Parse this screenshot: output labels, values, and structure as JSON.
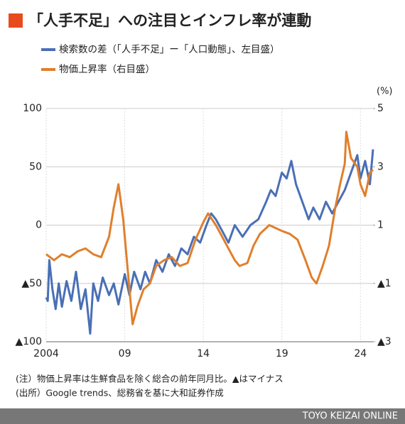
{
  "chart_data": {
    "type": "line",
    "title": "「人手不足」への注目とインフレ率が連動",
    "y2_unit": "(%)",
    "notes": [
      "(注）物価上昇率は生鮮食品を除く総合の前年同月比。▲はマイナス",
      "(出所）Google trends、総務省を基に大和証券作成"
    ],
    "source": "TOYO KEIZAI ONLINE",
    "xlim": [
      2004,
      2024.8
    ],
    "xticks": [
      {
        "value": 2004,
        "label": "2004"
      },
      {
        "value": 2009,
        "label": "09"
      },
      {
        "value": 2014,
        "label": "14"
      },
      {
        "value": 2019,
        "label": "19"
      },
      {
        "value": 2024,
        "label": "24"
      }
    ],
    "ylim": [
      -100,
      100
    ],
    "yticks": [
      100,
      50,
      0,
      {
        "value": -50,
        "label": "▲50"
      },
      {
        "value": -100,
        "label": "▲100"
      }
    ],
    "y2lim": [
      -3,
      5
    ],
    "y2ticks": [
      5,
      3,
      1,
      {
        "value": -1,
        "label": "▲1"
      },
      {
        "value": -3,
        "label": "▲3"
      }
    ],
    "grid": true,
    "series": [
      {
        "name": "検索数の差（「人手不足」ー「人口動態」、左目盛）",
        "color": "#4a6fb5",
        "axis": "y",
        "x": [
          2004.0,
          2004.1,
          2004.2,
          2004.4,
          2004.6,
          2004.8,
          2005.0,
          2005.3,
          2005.6,
          2005.9,
          2006.2,
          2006.5,
          2006.8,
          2007.0,
          2007.3,
          2007.6,
          2008.0,
          2008.3,
          2008.6,
          2009.0,
          2009.3,
          2009.6,
          2010.0,
          2010.3,
          2010.6,
          2011.0,
          2011.4,
          2011.8,
          2012.2,
          2012.6,
          2013.0,
          2013.4,
          2013.8,
          2014.2,
          2014.5,
          2014.8,
          2015.2,
          2015.6,
          2016.0,
          2016.5,
          2017.0,
          2017.5,
          2018.0,
          2018.3,
          2018.6,
          2019.0,
          2019.3,
          2019.6,
          2019.9,
          2020.3,
          2020.7,
          2021.0,
          2021.4,
          2021.8,
          2022.2,
          2022.6,
          2023.0,
          2023.4,
          2023.8,
          2024.0,
          2024.3,
          2024.6,
          2024.8
        ],
        "values": [
          -62,
          -65,
          -30,
          -55,
          -72,
          -50,
          -70,
          -48,
          -65,
          -40,
          -72,
          -55,
          -93,
          -50,
          -65,
          -45,
          -60,
          -50,
          -68,
          -42,
          -60,
          -40,
          -55,
          -40,
          -50,
          -30,
          -40,
          -25,
          -35,
          -20,
          -25,
          -10,
          -15,
          0,
          10,
          5,
          -5,
          -15,
          0,
          -10,
          0,
          5,
          20,
          30,
          25,
          45,
          40,
          55,
          35,
          20,
          5,
          15,
          5,
          20,
          10,
          20,
          30,
          45,
          60,
          40,
          55,
          35,
          65
        ]
      },
      {
        "name": "物価上昇率（右目盛）",
        "color": "#e07f2c",
        "axis": "y2",
        "x": [
          2004.0,
          2004.5,
          2005.0,
          2005.5,
          2006.0,
          2006.5,
          2007.0,
          2007.5,
          2008.0,
          2008.3,
          2008.6,
          2008.9,
          2009.2,
          2009.5,
          2009.8,
          2010.2,
          2010.6,
          2011.0,
          2011.5,
          2012.0,
          2012.5,
          2013.0,
          2013.5,
          2014.0,
          2014.3,
          2014.8,
          2015.2,
          2015.6,
          2016.0,
          2016.3,
          2016.8,
          2017.2,
          2017.6,
          2018.2,
          2018.6,
          2019.0,
          2019.5,
          2020.0,
          2020.5,
          2020.9,
          2021.2,
          2021.6,
          2022.0,
          2022.4,
          2022.7,
          2023.0,
          2023.1,
          2023.4,
          2023.8,
          2024.0,
          2024.3,
          2024.6,
          2024.8
        ],
        "values": [
          0,
          -0.2,
          0,
          -0.1,
          0.1,
          0.2,
          0,
          -0.1,
          0.6,
          1.6,
          2.4,
          1.2,
          -0.6,
          -2.4,
          -1.8,
          -1.2,
          -1.0,
          -0.4,
          -0.2,
          -0.1,
          -0.4,
          -0.3,
          0.5,
          1.1,
          1.4,
          1.0,
          0.6,
          0.2,
          -0.2,
          -0.4,
          -0.3,
          0.3,
          0.7,
          1.0,
          0.9,
          0.8,
          0.7,
          0.5,
          -0.2,
          -0.8,
          -1.0,
          -0.4,
          0.3,
          1.6,
          2.4,
          3.1,
          4.2,
          3.3,
          3.0,
          2.4,
          2.0,
          2.8,
          2.9
        ]
      }
    ]
  }
}
